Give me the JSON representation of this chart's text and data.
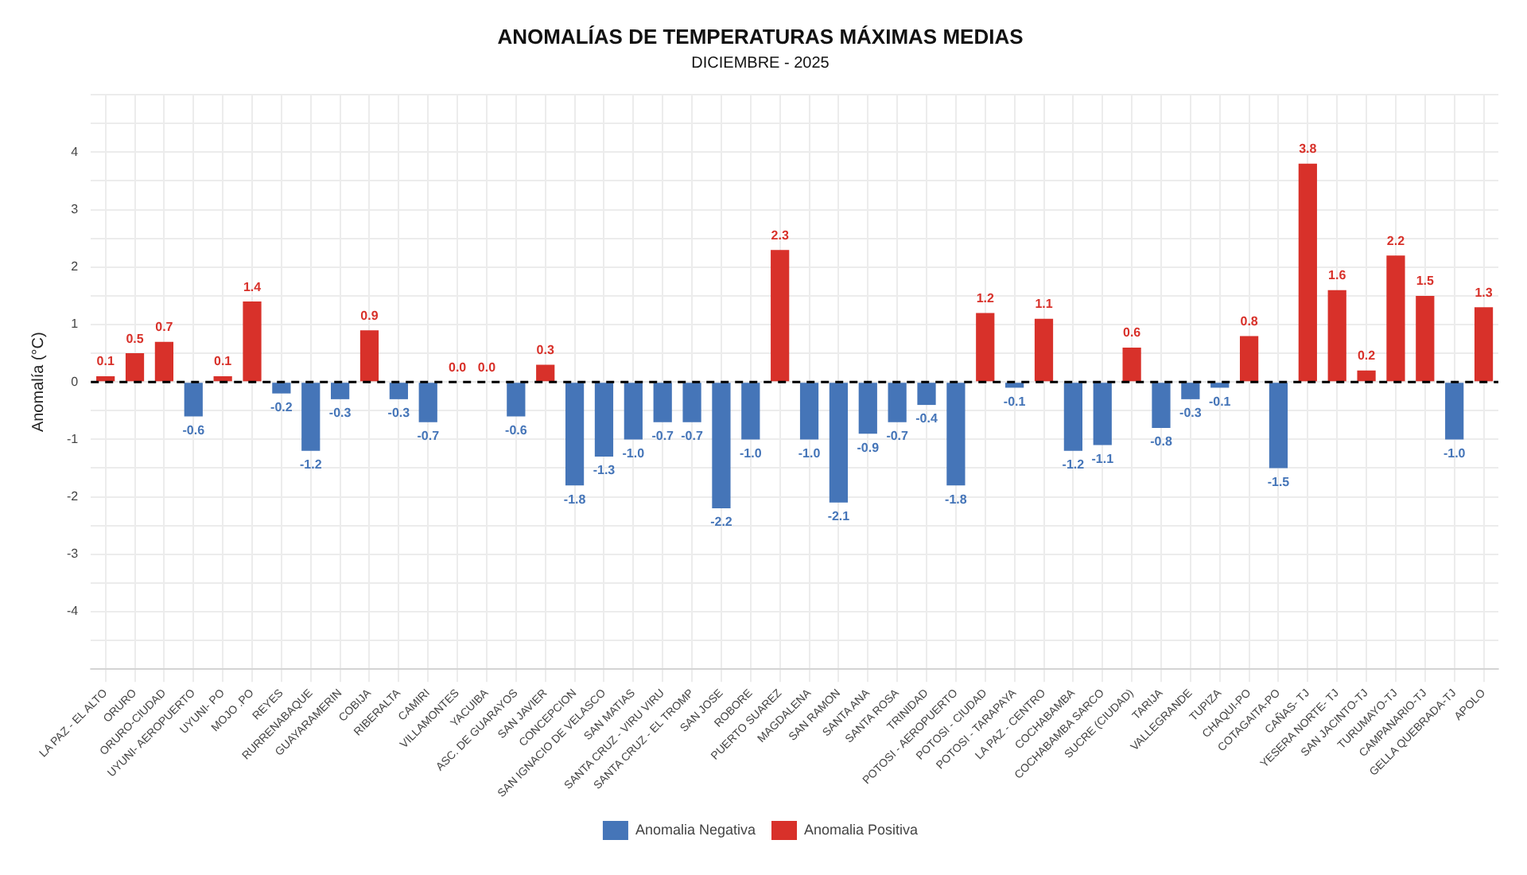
{
  "chart_data": {
    "type": "bar",
    "title": "ANOMALÍAS DE TEMPERATURAS MÁXIMAS MEDIAS",
    "subtitle": "DICIEMBRE - 2025",
    "ylabel": "Anomalía (°C)",
    "categories": [
      "LA PAZ - EL ALTO",
      "ORURO",
      "ORURO-CIUDAD",
      "UYUNI- AEROPUERTO",
      "UYUNI- PO",
      "MOJO .PO",
      "REYES",
      "RURRENABAQUE",
      "GUAYARAMERIN",
      "COBIJA",
      "RIBERALTA",
      "CAMIRI",
      "VILLAMONTES",
      "YACUIBA",
      "ASC. DE GUARAYOS",
      "SAN JAVIER",
      "CONCEPCION",
      "SAN IGNACIO DE VELASCO",
      "SAN MATIAS",
      "SANTA CRUZ - VIRU VIRU",
      "SANTA CRUZ - EL TROMP",
      "SAN JOSE",
      "ROBORE",
      "PUERTO SUAREZ",
      "MAGDALENA",
      "SAN RAMON",
      "SANTA ANA",
      "SANTA ROSA",
      "TRINIDAD",
      "POTOSI - AEROPUERTO",
      "POTOSI - CIUDAD",
      "POTOSI - TARAPAYA",
      "LA PAZ - CENTRO",
      "COCHABAMBA",
      "COCHABAMBA SARCO",
      "SUCRE (CIUDAD)",
      "TARIJA",
      "VALLEGRANDE",
      "TUPIZA",
      "CHAQUI-PO",
      "COTAGAITA-PO",
      "CAÑAS- TJ",
      "YESERA NORTE- TJ",
      "SAN JACINTO-TJ",
      "TURUMAYO-TJ",
      "CAMPANARIO-TJ",
      "GELLA QUEBRADA-TJ",
      "APOLO"
    ],
    "series": [
      {
        "name": "Anomalia Negativa",
        "color": "#4575b8",
        "values": [
          null,
          null,
          null,
          -0.6,
          null,
          null,
          -0.2,
          -1.2,
          -0.3,
          null,
          -0.3,
          -0.7,
          null,
          null,
          -0.6,
          null,
          -1.8,
          -1.3,
          -1.0,
          -0.7,
          -0.7,
          -2.2,
          -1.0,
          null,
          -1.0,
          -2.1,
          -0.9,
          -0.7,
          -0.4,
          -1.8,
          null,
          -0.1,
          null,
          -1.2,
          -1.1,
          null,
          -0.8,
          -0.3,
          -0.1,
          null,
          -1.5,
          null,
          null,
          null,
          null,
          null,
          -1.0,
          null
        ],
        "value_labels": [
          null,
          null,
          null,
          "-0.6",
          null,
          null,
          "-0.2",
          "-1.2",
          "-0.3",
          null,
          "-0.3",
          "-0.7",
          null,
          null,
          "-0.6",
          null,
          "-1.8",
          "-1.3",
          "-1.0",
          "-0.7",
          "-0.7",
          "-2.2",
          "-1.0",
          null,
          "-1.0",
          "-2.1",
          "-0.9",
          "-0.7",
          "-0.4",
          "-1.8",
          null,
          "-0.1",
          null,
          "-1.2",
          "-1.1",
          null,
          "-0.8",
          "-0.3",
          "-0.1",
          null,
          "-1.5",
          null,
          null,
          null,
          null,
          null,
          "-1.0",
          null
        ]
      },
      {
        "name": "Anomalia Positiva",
        "color": "#d8312a",
        "values": [
          0.1,
          0.5,
          0.7,
          null,
          0.1,
          1.4,
          null,
          null,
          null,
          0.9,
          null,
          null,
          0.0,
          0.0,
          null,
          0.3,
          null,
          null,
          null,
          null,
          null,
          null,
          null,
          2.3,
          null,
          null,
          null,
          null,
          null,
          null,
          1.2,
          null,
          1.1,
          null,
          null,
          0.6,
          null,
          null,
          null,
          0.8,
          null,
          3.8,
          1.6,
          0.2,
          2.2,
          1.5,
          null,
          1.3
        ],
        "value_labels": [
          "0.1",
          "0.5",
          "0.7",
          null,
          "0.1",
          "1.4",
          null,
          null,
          null,
          "0.9",
          null,
          null,
          "0.0",
          "0.0",
          null,
          "0.3",
          null,
          null,
          null,
          null,
          null,
          null,
          null,
          "2.3",
          null,
          null,
          null,
          null,
          null,
          null,
          "1.2",
          null,
          "1.1",
          null,
          null,
          "0.6",
          null,
          null,
          null,
          "0.8",
          null,
          "3.8",
          "1.6",
          "0.2",
          "2.2",
          "1.5",
          null,
          "1.3"
        ]
      }
    ],
    "ylim": [
      -5,
      5
    ],
    "yticks": [
      {
        "value": -5,
        "label": null
      },
      {
        "value": -4.5,
        "label": null
      },
      -4,
      {
        "value": -3.5,
        "label": null
      },
      -3,
      {
        "value": -2.5,
        "label": null
      },
      -2,
      {
        "value": -1.5,
        "label": null
      },
      -1,
      {
        "value": -0.5,
        "label": null
      },
      0,
      {
        "value": 0.5,
        "label": null
      },
      1,
      {
        "value": 1.5,
        "label": null
      },
      2,
      {
        "value": 2.5,
        "label": null
      },
      3,
      {
        "value": 3.5,
        "label": null
      },
      4,
      {
        "value": 4.5,
        "label": null
      },
      {
        "value": 5,
        "label": null
      }
    ],
    "ref_lines": [
      {
        "axis": "y",
        "value": 0,
        "color": "#000000",
        "line_style": "dashed"
      }
    ],
    "grid": true,
    "legend": "bottom"
  }
}
